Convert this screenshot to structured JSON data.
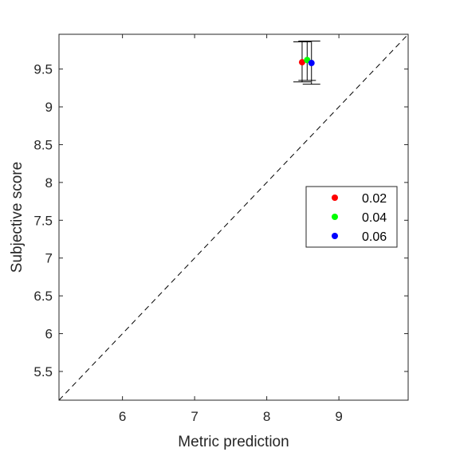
{
  "chart_data": {
    "type": "scatter",
    "xlabel": "Metric prediction",
    "ylabel": "Subjective score",
    "xlim": [
      5.12,
      9.96
    ],
    "ylim": [
      5.12,
      9.96
    ],
    "x_ticks": [
      6,
      7,
      8,
      9
    ],
    "x_tick_labels": [
      "6",
      "7",
      "8",
      "9"
    ],
    "y_ticks": [
      5.5,
      6,
      6.5,
      7,
      7.5,
      8,
      8.5,
      9,
      9.5
    ],
    "y_tick_labels": [
      "5.5",
      "6",
      "6.5",
      "7",
      "7.5",
      "8",
      "8.5",
      "9",
      "9.5"
    ],
    "grid": false,
    "legend_position": "right",
    "reference_line": "identity (y = x), dashed",
    "series": [
      {
        "name": "0.02",
        "color": "#ff0000",
        "x": 8.49,
        "y": 9.59,
        "y_err_low": 9.33,
        "y_err_high": 9.86
      },
      {
        "name": "0.04",
        "color": "#00ff00",
        "x": 8.56,
        "y": 9.62,
        "y_err_low": 9.35,
        "y_err_high": 9.87
      },
      {
        "name": "0.06",
        "color": "#0000ff",
        "x": 8.62,
        "y": 9.58,
        "y_err_low": 9.3,
        "y_err_high": 9.87
      }
    ]
  }
}
